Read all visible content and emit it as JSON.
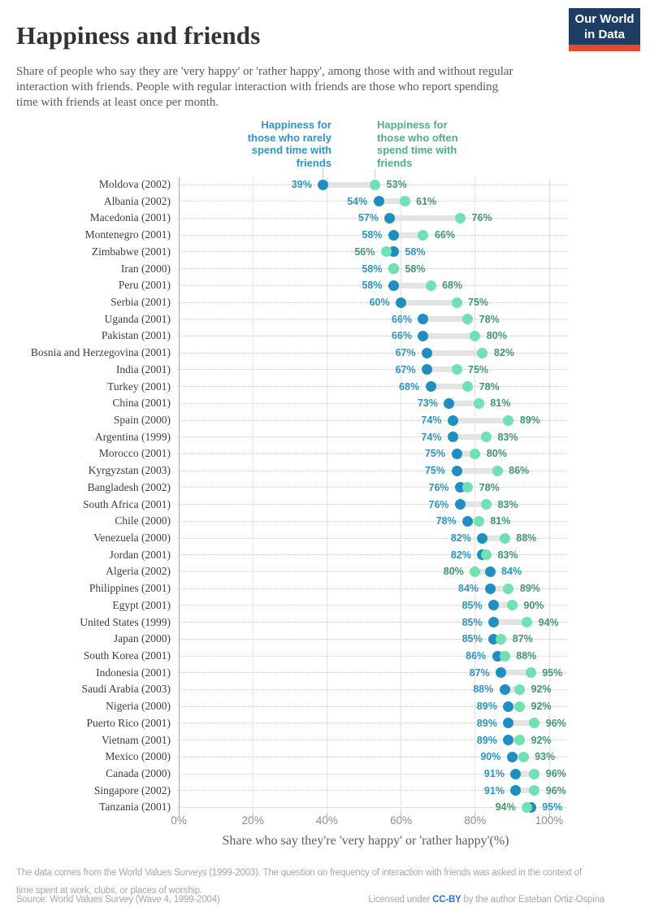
{
  "header": {
    "title": "Happiness and friends",
    "subtitle": [
      "Share of people who say they are 'very happy' or 'rather happy', among those with and without regular",
      "interaction with friends. People with regular interaction with friends are those who report spending",
      "time with friends at least once per month."
    ],
    "logo": {
      "line1": "Our World",
      "line2": "in Data"
    }
  },
  "legend": {
    "rarely": {
      "label": [
        "Happiness for",
        "those who rarely",
        "spend time with",
        "friends"
      ],
      "color": "#2d95c9"
    },
    "often": {
      "label": [
        "Happiness for",
        "those who often",
        "spend time with",
        "friends"
      ],
      "color": "#4cb183"
    }
  },
  "colors": {
    "rarely_dot": "#1f8ec0",
    "rarely_text": "#2d93c4",
    "often_dot": "#70e1b0",
    "often_text": "#3f9868",
    "connector": "#e4e4e4",
    "legend_tick_rarely": "rgba(45,149,201,0.45)",
    "legend_tick_often": "rgba(112,225,176,0.7)"
  },
  "chart_data": {
    "type": "dumbbell",
    "xlabel": "Share who say they're 'very happy' or 'rather happy'(%)",
    "xlim": [
      0,
      100
    ],
    "x_ticks": [
      "0%",
      "20%",
      "40%",
      "60%",
      "80%",
      "100%"
    ],
    "x_tick_values": [
      0,
      20,
      40,
      60,
      80,
      100
    ],
    "series_names": {
      "rarely": "Happiness for those who rarely spend time with friends",
      "often": "Happiness for those who often spend time with friends"
    },
    "rows": [
      {
        "country": "Moldova (2002)",
        "rarely": 39,
        "often": 53
      },
      {
        "country": "Albania (2002)",
        "rarely": 54,
        "often": 61
      },
      {
        "country": "Macedonia (2001)",
        "rarely": 57,
        "often": 76
      },
      {
        "country": "Montenegro (2001)",
        "rarely": 58,
        "often": 66
      },
      {
        "country": "Zimbabwe (2001)",
        "rarely": 58,
        "often": 56
      },
      {
        "country": "Iran (2000)",
        "rarely": 58,
        "often": 58
      },
      {
        "country": "Peru (2001)",
        "rarely": 58,
        "often": 68
      },
      {
        "country": "Serbia (2001)",
        "rarely": 60,
        "often": 75
      },
      {
        "country": "Uganda (2001)",
        "rarely": 66,
        "often": 78
      },
      {
        "country": "Pakistan (2001)",
        "rarely": 66,
        "often": 80
      },
      {
        "country": "Bosnia and Herzegovina (2001)",
        "rarely": 67,
        "often": 82
      },
      {
        "country": "India (2001)",
        "rarely": 67,
        "often": 75
      },
      {
        "country": "Turkey (2001)",
        "rarely": 68,
        "often": 78
      },
      {
        "country": "China (2001)",
        "rarely": 73,
        "often": 81
      },
      {
        "country": "Spain (2000)",
        "rarely": 74,
        "often": 89
      },
      {
        "country": "Argentina (1999)",
        "rarely": 74,
        "often": 83
      },
      {
        "country": "Morocco (2001)",
        "rarely": 75,
        "often": 80
      },
      {
        "country": "Kyrgyzstan (2003)",
        "rarely": 75,
        "often": 86
      },
      {
        "country": "Bangladesh (2002)",
        "rarely": 76,
        "often": 78
      },
      {
        "country": "South Africa (2001)",
        "rarely": 76,
        "often": 83
      },
      {
        "country": "Chile (2000)",
        "rarely": 78,
        "often": 81
      },
      {
        "country": "Venezuela (2000)",
        "rarely": 82,
        "often": 88
      },
      {
        "country": "Jordan (2001)",
        "rarely": 82,
        "often": 83
      },
      {
        "country": "Algeria (2002)",
        "rarely": 84,
        "often": 80
      },
      {
        "country": "Philippines (2001)",
        "rarely": 84,
        "often": 89
      },
      {
        "country": "Egypt (2001)",
        "rarely": 85,
        "often": 90
      },
      {
        "country": "United States (1999)",
        "rarely": 85,
        "often": 94
      },
      {
        "country": "Japan (2000)",
        "rarely": 85,
        "often": 87
      },
      {
        "country": "South Korea (2001)",
        "rarely": 86,
        "often": 88
      },
      {
        "country": "Indonesia (2001)",
        "rarely": 87,
        "often": 95
      },
      {
        "country": "Saudi Arabia (2003)",
        "rarely": 88,
        "often": 92
      },
      {
        "country": "Nigeria (2000)",
        "rarely": 89,
        "often": 92
      },
      {
        "country": "Puerto Rico (2001)",
        "rarely": 89,
        "often": 96
      },
      {
        "country": "Vietnam (2001)",
        "rarely": 89,
        "often": 92
      },
      {
        "country": "Mexico (2000)",
        "rarely": 90,
        "often": 93
      },
      {
        "country": "Canada (2000)",
        "rarely": 91,
        "often": 96
      },
      {
        "country": "Singapore (2002)",
        "rarely": 91,
        "often": 96
      },
      {
        "country": "Tanzania (2001)",
        "rarely": 95,
        "often": 94
      }
    ]
  },
  "footer": {
    "note": [
      "The data comes from the World Values Surveys (1999-2003). The question on frequency of interaction with friends was asked in the context of",
      "time spent at work, clubs, or places of worship."
    ],
    "source": "Source: World Values Survey (Wave 4, 1999-2004)",
    "license_prefix": "Licensed under ",
    "license_link": "CC-BY",
    "license_suffix": " by the author Esteban Ortiz-Ospina"
  }
}
